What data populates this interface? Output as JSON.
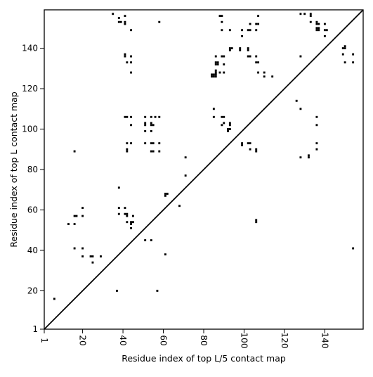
{
  "chart_data": {
    "type": "scatter",
    "title": "",
    "xlabel": "Residue index of top L/5 contact map",
    "ylabel": "Residue index of top L contact map",
    "xlim": [
      1,
      159
    ],
    "ylim": [
      1,
      159
    ],
    "xticks": [
      1,
      20,
      40,
      60,
      80,
      100,
      120,
      140
    ],
    "yticks": [
      1,
      20,
      40,
      60,
      80,
      100,
      120,
      140
    ],
    "grid": false,
    "diagonal_line": true,
    "marker": "square",
    "marker_color": "#000000",
    "series": [
      {
        "points": [
          [
            6,
            16
          ],
          [
            16,
            41
          ],
          [
            16,
            53
          ],
          [
            16,
            57
          ],
          [
            17,
            57
          ],
          [
            16,
            89
          ],
          [
            13,
            53
          ],
          [
            20,
            41
          ],
          [
            20,
            37
          ],
          [
            20,
            57
          ],
          [
            20,
            61
          ],
          [
            24,
            37
          ],
          [
            25,
            37
          ],
          [
            25,
            34
          ],
          [
            29,
            37
          ],
          [
            37,
            20
          ],
          [
            38,
            71
          ],
          [
            38,
            58
          ],
          [
            38,
            61
          ],
          [
            38,
            153
          ],
          [
            39,
            153
          ],
          [
            38,
            155
          ],
          [
            41,
            58
          ],
          [
            41,
            61
          ],
          [
            42,
            57
          ],
          [
            42,
            58
          ],
          [
            42,
            54
          ],
          [
            42,
            89
          ],
          [
            42,
            90
          ],
          [
            42,
            93
          ],
          [
            41,
            106
          ],
          [
            42,
            106
          ],
          [
            41,
            136
          ],
          [
            41,
            137
          ],
          [
            41,
            152
          ],
          [
            41,
            153
          ],
          [
            41,
            156
          ],
          [
            42,
            133
          ],
          [
            44,
            51
          ],
          [
            44,
            53
          ],
          [
            44,
            54
          ],
          [
            45,
            54
          ],
          [
            45,
            57
          ],
          [
            44,
            93
          ],
          [
            44,
            102
          ],
          [
            44,
            106
          ],
          [
            44,
            128
          ],
          [
            44,
            133
          ],
          [
            44,
            136
          ],
          [
            44,
            149
          ],
          [
            35,
            157
          ],
          [
            51,
            45
          ],
          [
            51,
            93
          ],
          [
            51,
            99
          ],
          [
            51,
            102
          ],
          [
            51,
            103
          ],
          [
            51,
            106
          ],
          [
            54,
            45
          ],
          [
            54,
            89
          ],
          [
            54,
            93
          ],
          [
            54,
            99
          ],
          [
            54,
            102
          ],
          [
            54,
            103
          ],
          [
            54,
            106
          ],
          [
            55,
            89
          ],
          [
            55,
            93
          ],
          [
            55,
            102
          ],
          [
            56,
            106
          ],
          [
            57,
            20
          ],
          [
            58,
            89
          ],
          [
            58,
            93
          ],
          [
            58,
            106
          ],
          [
            58,
            153
          ],
          [
            61,
            38
          ],
          [
            61,
            67
          ],
          [
            61,
            68
          ],
          [
            62,
            68
          ],
          [
            68,
            62
          ],
          [
            71,
            77
          ],
          [
            71,
            86
          ],
          [
            85,
            106
          ],
          [
            85,
            110
          ],
          [
            84,
            126
          ],
          [
            84,
            127
          ],
          [
            85,
            126
          ],
          [
            85,
            127
          ],
          [
            86,
            126
          ],
          [
            86,
            127
          ],
          [
            86,
            128
          ],
          [
            86,
            129
          ],
          [
            86,
            132
          ],
          [
            86,
            133
          ],
          [
            86,
            136
          ],
          [
            87,
            132
          ],
          [
            87,
            133
          ],
          [
            88,
            128
          ],
          [
            88,
            156
          ],
          [
            89,
            102
          ],
          [
            89,
            106
          ],
          [
            89,
            136
          ],
          [
            89,
            149
          ],
          [
            89,
            153
          ],
          [
            89,
            156
          ],
          [
            90,
            103
          ],
          [
            90,
            106
          ],
          [
            90,
            128
          ],
          [
            90,
            132
          ],
          [
            90,
            136
          ],
          [
            92,
            99
          ],
          [
            92,
            100
          ],
          [
            93,
            100
          ],
          [
            93,
            102
          ],
          [
            93,
            103
          ],
          [
            93,
            139
          ],
          [
            93,
            140
          ],
          [
            93,
            149
          ],
          [
            94,
            140
          ],
          [
            98,
            139
          ],
          [
            98,
            140
          ],
          [
            99,
            92
          ],
          [
            99,
            93
          ],
          [
            99,
            146
          ],
          [
            99,
            149
          ],
          [
            102,
            93
          ],
          [
            102,
            136
          ],
          [
            102,
            139
          ],
          [
            102,
            140
          ],
          [
            102,
            149
          ],
          [
            103,
            90
          ],
          [
            103,
            93
          ],
          [
            103,
            136
          ],
          [
            103,
            149
          ],
          [
            103,
            152
          ],
          [
            106,
            89
          ],
          [
            106,
            90
          ],
          [
            106,
            54
          ],
          [
            106,
            55
          ],
          [
            106,
            133
          ],
          [
            106,
            136
          ],
          [
            106,
            149
          ],
          [
            106,
            152
          ],
          [
            107,
            133
          ],
          [
            107,
            152
          ],
          [
            107,
            156
          ],
          [
            107,
            128
          ],
          [
            110,
            126
          ],
          [
            110,
            128
          ],
          [
            114,
            126
          ],
          [
            126,
            114
          ],
          [
            128,
            110
          ],
          [
            128,
            86
          ],
          [
            128,
            136
          ],
          [
            128,
            157
          ],
          [
            130,
            157
          ],
          [
            132,
            86
          ],
          [
            132,
            87
          ],
          [
            133,
            153
          ],
          [
            133,
            156
          ],
          [
            133,
            157
          ],
          [
            136,
            90
          ],
          [
            136,
            93
          ],
          [
            136,
            102
          ],
          [
            136,
            106
          ],
          [
            136,
            149
          ],
          [
            136,
            150
          ],
          [
            136,
            152
          ],
          [
            136,
            153
          ],
          [
            137,
            149
          ],
          [
            137,
            150
          ],
          [
            137,
            152
          ],
          [
            140,
            146
          ],
          [
            140,
            149
          ],
          [
            140,
            152
          ],
          [
            141,
            149
          ],
          [
            149,
            137
          ],
          [
            149,
            140
          ],
          [
            150,
            140
          ],
          [
            150,
            141
          ],
          [
            150,
            133
          ],
          [
            154,
            133
          ],
          [
            154,
            137
          ],
          [
            154,
            41
          ]
        ]
      }
    ]
  }
}
